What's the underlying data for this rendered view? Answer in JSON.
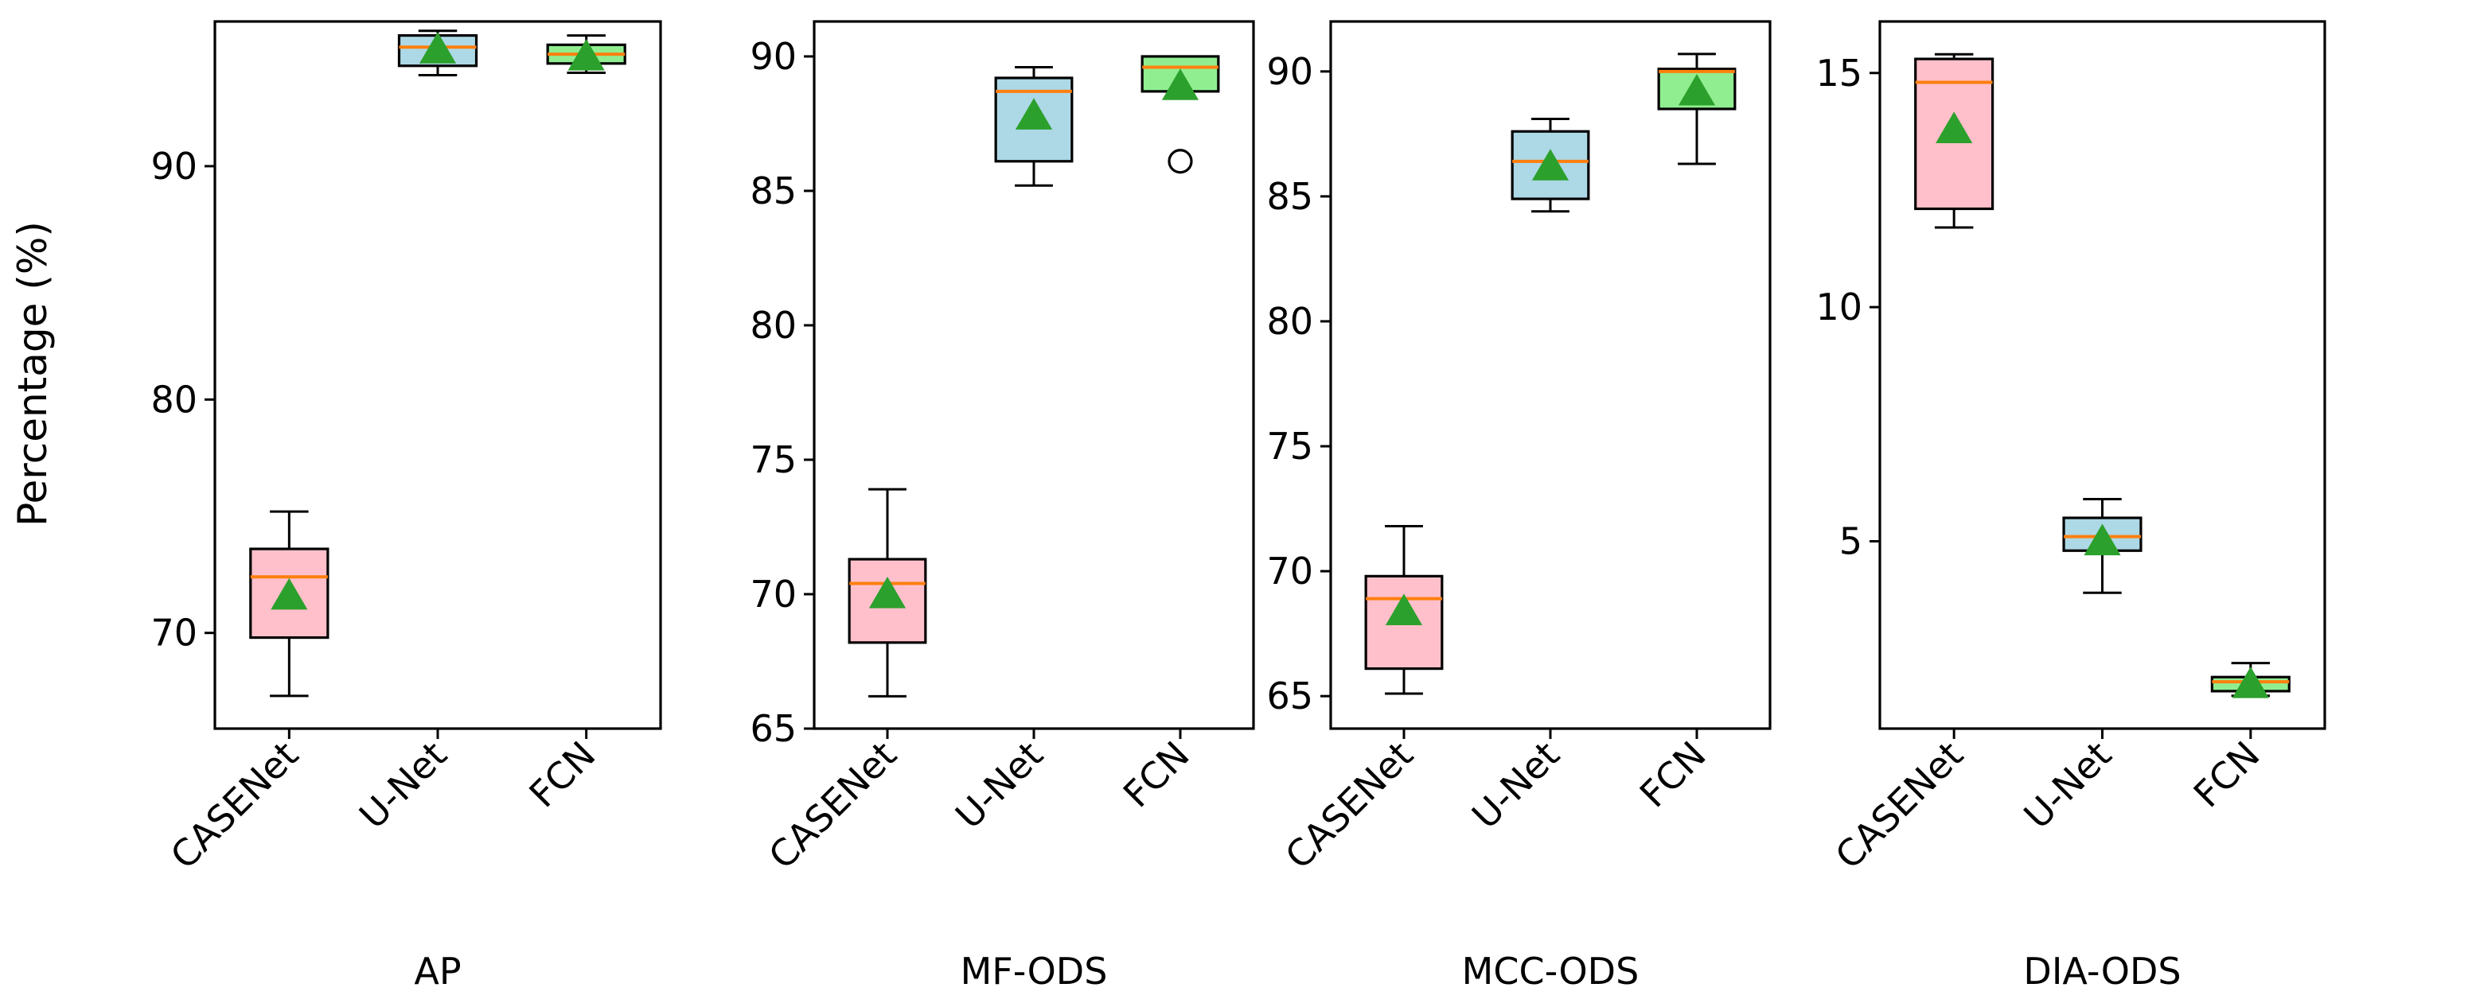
{
  "chart_data": {
    "type": "box",
    "ylabel": "Percentage (%)",
    "colors": {
      "CASENet": "#ffc0cb",
      "U-Net": "#add8e6",
      "FCN": "#90ee90",
      "median": "#ff7f0e",
      "mean_marker": "#2ca02c"
    },
    "panels": [
      {
        "xlabel": "AP",
        "ylim": [
          65.9,
          96.2
        ],
        "yticks": [
          70,
          80,
          90
        ],
        "categories": [
          "CASENet",
          "U-Net",
          "FCN"
        ],
        "boxes": [
          {
            "name": "CASENet",
            "whislo": 67.3,
            "q1": 69.8,
            "med": 72.4,
            "q3": 73.6,
            "whishi": 75.2,
            "mean": 71.6,
            "fliers": []
          },
          {
            "name": "U-Net",
            "whislo": 93.9,
            "q1": 94.3,
            "med": 95.1,
            "q3": 95.6,
            "whishi": 95.8,
            "mean": 95.0,
            "fliers": []
          },
          {
            "name": "FCN",
            "whislo": 94.0,
            "q1": 94.4,
            "med": 94.8,
            "q3": 95.2,
            "whishi": 95.6,
            "mean": 94.7,
            "fliers": []
          }
        ]
      },
      {
        "xlabel": "MF-ODS",
        "ylim": [
          65.0,
          91.3
        ],
        "yticks": [
          65,
          70,
          75,
          80,
          85,
          90
        ],
        "categories": [
          "CASENet",
          "U-Net",
          "FCN"
        ],
        "boxes": [
          {
            "name": "CASENet",
            "whislo": 66.2,
            "q1": 68.2,
            "med": 70.4,
            "q3": 71.3,
            "whishi": 73.9,
            "mean": 70.0,
            "fliers": []
          },
          {
            "name": "U-Net",
            "whislo": 85.2,
            "q1": 86.1,
            "med": 88.7,
            "q3": 89.2,
            "whishi": 89.6,
            "mean": 87.8,
            "fliers": []
          },
          {
            "name": "FCN",
            "whislo": 88.7,
            "q1": 88.7,
            "med": 89.6,
            "q3": 90.0,
            "whishi": 90.0,
            "mean": 88.9,
            "fliers": [
              86.1
            ]
          }
        ]
      },
      {
        "xlabel": "MCC-ODS",
        "ylim": [
          63.7,
          92.0
        ],
        "yticks": [
          65,
          70,
          75,
          80,
          85,
          90
        ],
        "categories": [
          "CASENet",
          "U-Net",
          "FCN"
        ],
        "boxes": [
          {
            "name": "CASENet",
            "whislo": 65.1,
            "q1": 66.1,
            "med": 68.9,
            "q3": 69.8,
            "whishi": 71.8,
            "mean": 68.4,
            "fliers": []
          },
          {
            "name": "U-Net",
            "whislo": 84.4,
            "q1": 84.9,
            "med": 86.4,
            "q3": 87.6,
            "whishi": 88.1,
            "mean": 86.2,
            "fliers": []
          },
          {
            "name": "FCN",
            "whislo": 86.3,
            "q1": 88.5,
            "med": 90.0,
            "q3": 90.1,
            "whishi": 90.7,
            "mean": 89.2,
            "fliers": []
          }
        ]
      },
      {
        "xlabel": "DIA-ODS",
        "ylim": [
          1.0,
          16.1
        ],
        "yticks": [
          5,
          10,
          15
        ],
        "categories": [
          "CASENet",
          "U-Net",
          "FCN"
        ],
        "boxes": [
          {
            "name": "CASENet",
            "whislo": 11.7,
            "q1": 12.1,
            "med": 14.8,
            "q3": 15.3,
            "whishi": 15.4,
            "mean": 13.8,
            "fliers": []
          },
          {
            "name": "U-Net",
            "whislo": 3.9,
            "q1": 4.8,
            "med": 5.1,
            "q3": 5.5,
            "whishi": 5.9,
            "mean": 5.0,
            "fliers": []
          },
          {
            "name": "FCN",
            "whislo": 1.7,
            "q1": 1.8,
            "med": 2.0,
            "q3": 2.1,
            "whishi": 2.4,
            "mean": 1.95,
            "fliers": []
          }
        ]
      }
    ]
  }
}
